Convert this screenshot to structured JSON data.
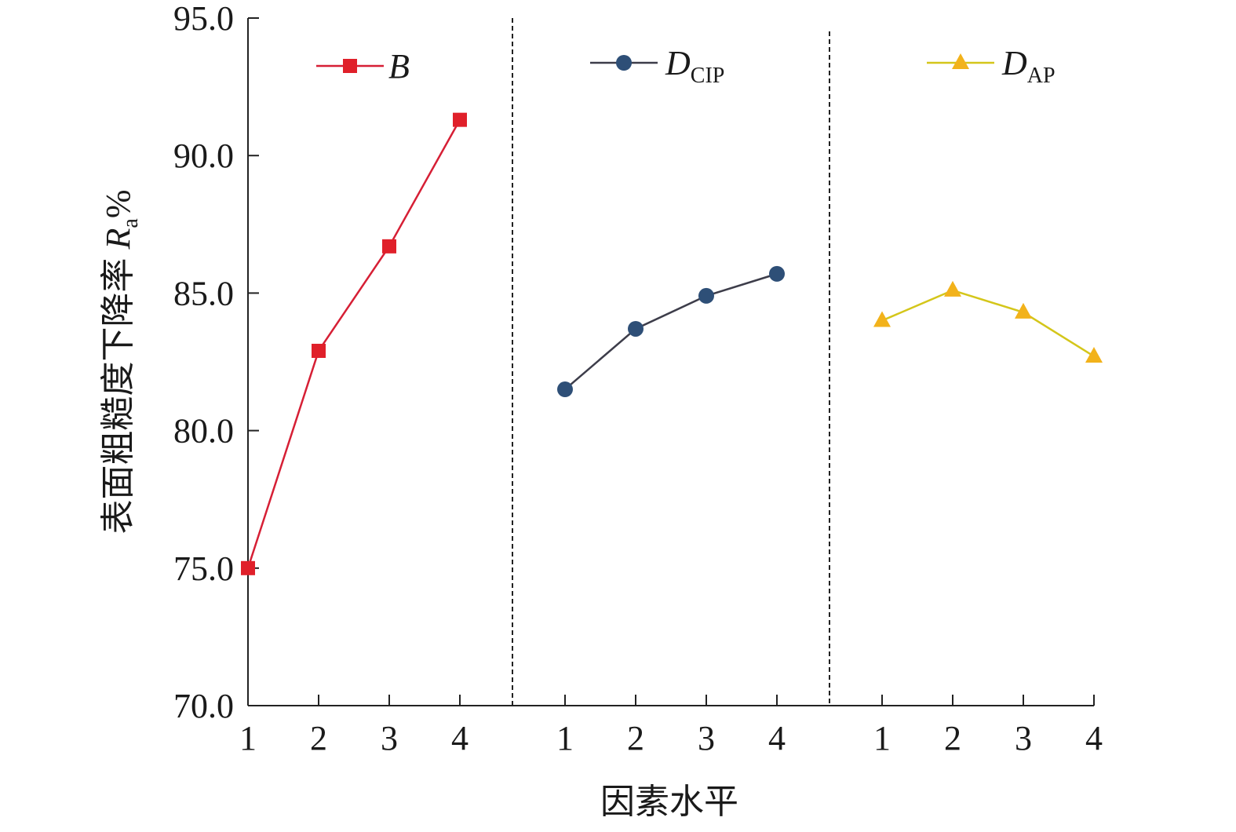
{
  "chart_data": {
    "type": "line",
    "ylabel": {
      "text": "表面粗糙度下降率",
      "var": "R",
      "sub": "a",
      "unit": "%"
    },
    "xlabel": "因素水平",
    "ylim": [
      70.0,
      95.0
    ],
    "yticks": [
      "70.0",
      "75.0",
      "80.0",
      "85.0",
      "90.0",
      "95.0"
    ],
    "ytick_values": [
      70,
      75,
      80,
      85,
      90,
      95
    ],
    "x_tick_labels": [
      "1",
      "2",
      "3",
      "4"
    ],
    "separators": "dashed",
    "series": [
      {
        "name": "B",
        "name_main": "B",
        "name_sub": "",
        "marker": "square",
        "color": "#d61f35",
        "marker_color": "#e0202a",
        "x": [
          1,
          2,
          3,
          4
        ],
        "values": [
          75.0,
          82.9,
          86.7,
          91.3
        ]
      },
      {
        "name": "DCIP",
        "name_main": "D",
        "name_sub": "CIP",
        "marker": "circle",
        "color": "#3d3d4a",
        "marker_color": "#2e4f77",
        "x": [
          1,
          2,
          3,
          4
        ],
        "values": [
          81.5,
          83.7,
          84.9,
          85.7
        ]
      },
      {
        "name": "DAP",
        "name_main": "D",
        "name_sub": "AP",
        "marker": "triangle",
        "color": "#d4c61a",
        "marker_color": "#f2b21b",
        "x": [
          1,
          2,
          3,
          4
        ],
        "values": [
          84.0,
          85.1,
          84.3,
          82.7
        ]
      }
    ]
  }
}
